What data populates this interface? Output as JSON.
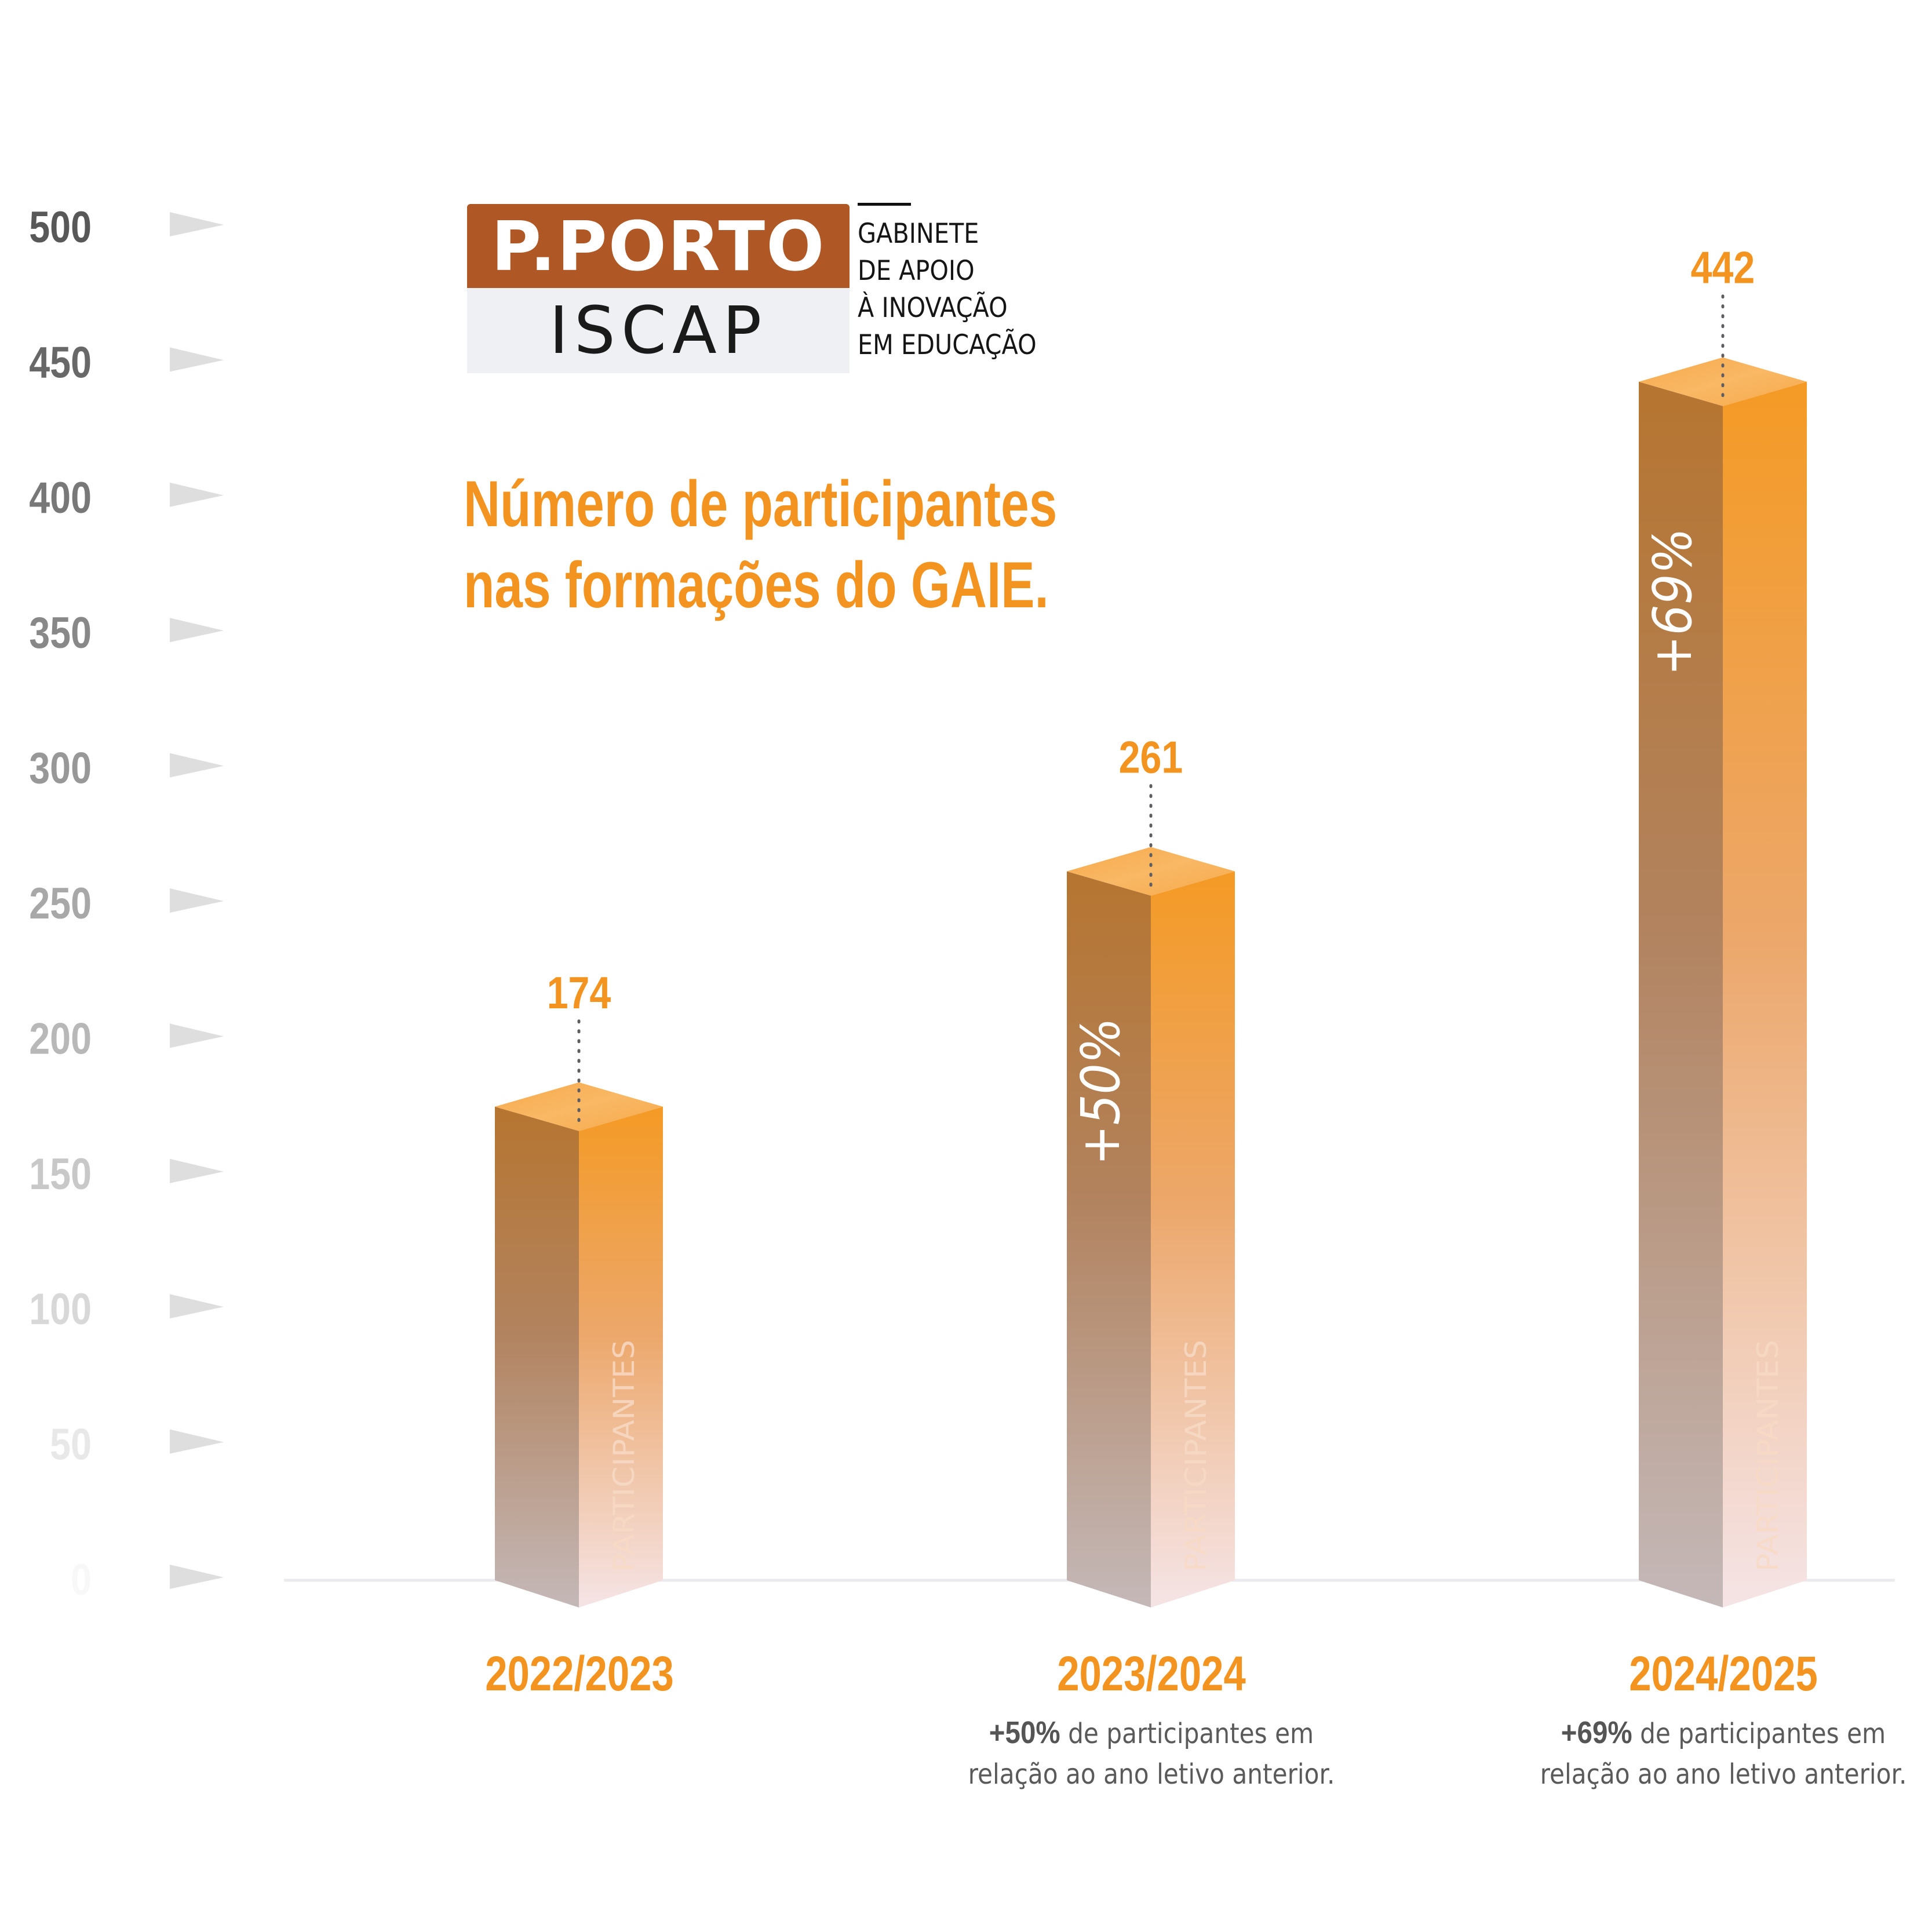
{
  "logo": {
    "top_text": "P.PORTO",
    "bottom_text": "ISCAP",
    "subtitle_lines": [
      "GABINETE",
      "DE APOIO",
      "À INOVAÇÃO",
      "EM EDUCAÇÃO"
    ]
  },
  "title_lines": [
    "Número de participantes",
    "nas formações do GAIE."
  ],
  "colors": {
    "accent": "#f39420",
    "logo_brown": "#b05726",
    "logo_gray": "#eef0f3",
    "bar_left_top": "#b87832",
    "bar_right_top": "#f49a25",
    "bar_bottom": "#f5e4e6",
    "tick_arrow": "#dedede",
    "note_text": "#5a5a5a"
  },
  "chart_data": {
    "type": "bar",
    "title": "Número de participantes nas formações do GAIE.",
    "xlabel": "",
    "ylabel": "",
    "ylim": [
      0,
      500
    ],
    "yticks": [
      0,
      50,
      100,
      150,
      200,
      250,
      300,
      350,
      400,
      450,
      500
    ],
    "ytick_labels": [
      "0",
      "50",
      "100",
      "150",
      "200",
      "250",
      "300",
      "350",
      "400",
      "450",
      "500"
    ],
    "grid": false,
    "categories": [
      "2022/2023",
      "2023/2024",
      "2024/2025"
    ],
    "values": [
      174,
      261,
      442
    ],
    "value_labels": [
      "174",
      "261",
      "442"
    ],
    "bar_text": "PARTICIPANTES",
    "growth_labels": [
      "",
      "+50%",
      "+69%"
    ],
    "notes": [
      {
        "bold": "",
        "line1": "",
        "line2": ""
      },
      {
        "bold": "+50%",
        "line1": " de participantes em",
        "line2": "relação ao ano letivo anterior."
      },
      {
        "bold": "+69%",
        "line1": " de participantes em",
        "line2": "relação ao ano letivo anterior."
      }
    ]
  }
}
